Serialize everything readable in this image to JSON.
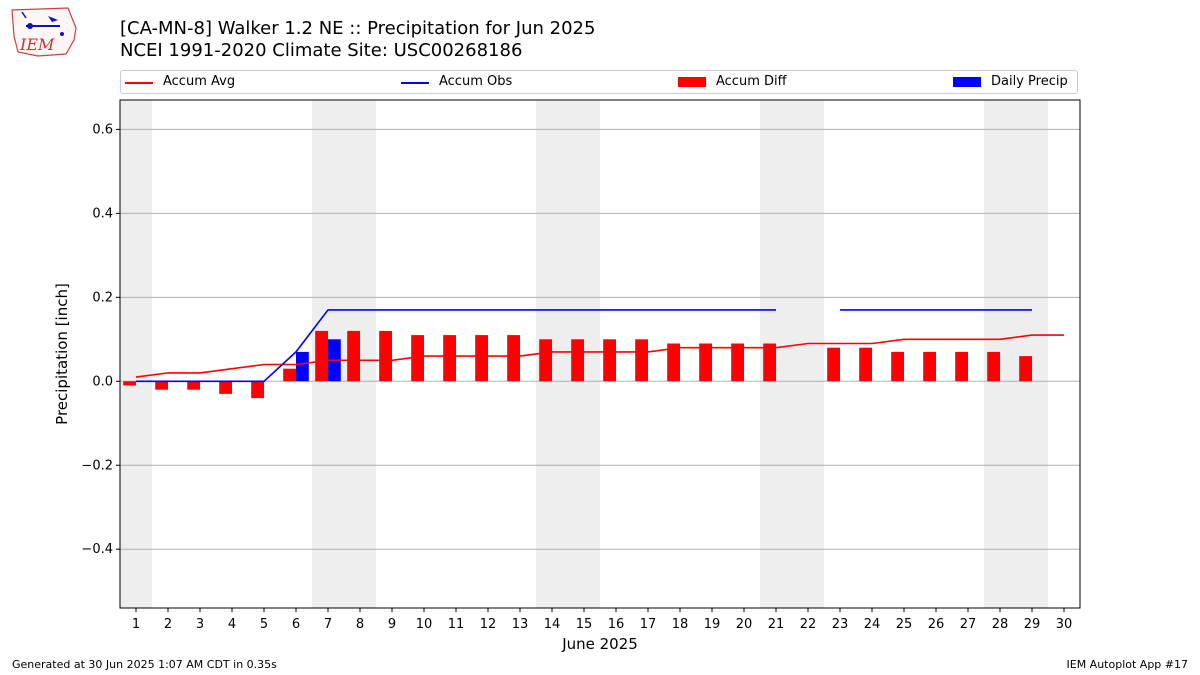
{
  "header": {
    "title_line1": "[CA-MN-8] Walker 1.2 NE :: Precipitation for Jun 2025",
    "title_line2": "NCEI 1991-2020 Climate Site: USC00268186",
    "logo_text": "IEM"
  },
  "footer": {
    "generated": "Generated at 30 Jun 2025 1:07 AM CDT in 0.35s",
    "app": "IEM Autoplot App #17"
  },
  "colors": {
    "avg": "#ff0000",
    "obs": "#0000ff",
    "diff": "#ff0000",
    "daily": "#0000ff",
    "weekend": "#eeeeee",
    "grid": "#b0b0b0"
  },
  "chart_data": {
    "type": "bar",
    "xlabel": "June 2025",
    "ylabel": "Precipitation [inch]",
    "ylim": [
      -0.54,
      0.67
    ],
    "yticks": [
      -0.4,
      -0.2,
      0.0,
      0.2,
      0.4,
      0.6
    ],
    "ytick_labels": [
      "−0.4",
      "−0.2",
      "0.0",
      "0.2",
      "0.4",
      "0.6"
    ],
    "days": [
      1,
      2,
      3,
      4,
      5,
      6,
      7,
      8,
      9,
      10,
      11,
      12,
      13,
      14,
      15,
      16,
      17,
      18,
      19,
      20,
      21,
      22,
      23,
      24,
      25,
      26,
      27,
      28,
      29,
      30
    ],
    "grid": true,
    "legend_position": "top",
    "weekend_days": [
      1,
      7,
      8,
      14,
      15,
      21,
      22,
      28,
      29
    ],
    "legend": [
      "Accum Avg",
      "Accum Obs",
      "Accum Diff",
      "Daily Precip"
    ],
    "accum_avg": [
      0.01,
      0.02,
      0.02,
      0.03,
      0.04,
      0.04,
      0.05,
      0.05,
      0.05,
      0.06,
      0.06,
      0.06,
      0.06,
      0.07,
      0.07,
      0.07,
      0.07,
      0.08,
      0.08,
      0.08,
      0.08,
      0.09,
      0.09,
      0.09,
      0.1,
      0.1,
      0.1,
      0.1,
      0.11,
      0.11
    ],
    "accum_obs": [
      0,
      0,
      0,
      0,
      0,
      0.07,
      0.17,
      0.17,
      0.17,
      0.17,
      0.17,
      0.17,
      0.17,
      0.17,
      0.17,
      0.17,
      0.17,
      0.17,
      0.17,
      0.17,
      0.17,
      null,
      0.17,
      0.17,
      0.17,
      0.17,
      0.17,
      0.17,
      0.17,
      null
    ],
    "accum_diff": [
      -0.01,
      -0.02,
      -0.02,
      -0.03,
      -0.04,
      0.03,
      0.12,
      0.12,
      0.12,
      0.11,
      0.11,
      0.11,
      0.11,
      0.1,
      0.1,
      0.1,
      0.1,
      0.09,
      0.09,
      0.09,
      0.09,
      null,
      0.08,
      0.08,
      0.07,
      0.07,
      0.07,
      0.07,
      0.06,
      null
    ],
    "daily_precip": [
      0,
      0,
      0,
      0,
      0,
      0.07,
      0.1,
      0,
      0,
      0,
      0,
      0,
      0,
      0,
      0,
      0,
      0,
      0,
      0,
      0,
      0,
      null,
      0,
      0,
      0,
      0,
      0,
      0,
      0,
      null
    ]
  }
}
